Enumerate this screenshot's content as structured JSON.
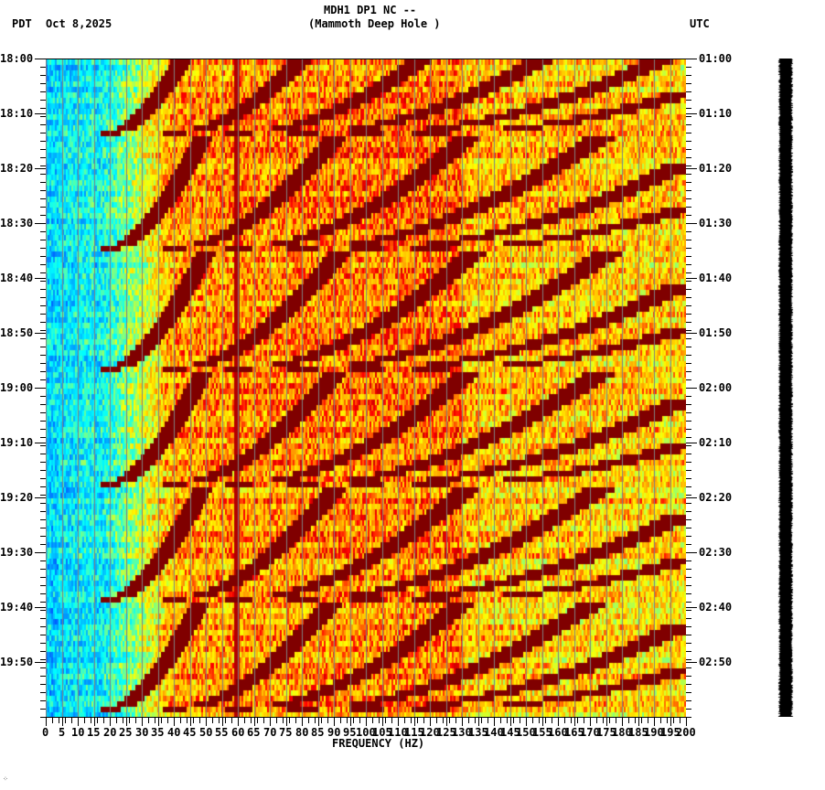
{
  "header": {
    "station_line": "MDH1 DP1 NC --",
    "location_line": "(Mammoth Deep Hole )",
    "left_timezone": "PDT",
    "date": "Oct 8,2025",
    "right_timezone": "UTC"
  },
  "footer": {
    "corner_mark": "⁘"
  },
  "colors": {
    "background": "#ffffff",
    "grid_line": "#808080",
    "colormap_low": "#0080ff",
    "colormap_mid_low": "#00ffff",
    "colormap_mid": "#ffff00",
    "colormap_mid_high": "#ff8000",
    "colormap_high": "#ff0000",
    "colormap_max": "#800000",
    "waveform": "#000000"
  },
  "chart_data": {
    "type": "heatmap",
    "title": "MDH1 DP1 NC -- (Mammoth Deep Hole )",
    "subtitle": "Oct 8,2025",
    "xlabel": "FREQUENCY (HZ)",
    "ylabel_left": "PDT",
    "ylabel_right": "UTC",
    "xlim": [
      0,
      200
    ],
    "x_ticks": [
      0,
      5,
      10,
      15,
      20,
      25,
      30,
      35,
      40,
      45,
      50,
      55,
      60,
      65,
      70,
      75,
      80,
      85,
      90,
      95,
      100,
      105,
      110,
      115,
      120,
      125,
      130,
      135,
      140,
      145,
      150,
      155,
      160,
      165,
      170,
      175,
      180,
      185,
      190,
      195,
      200
    ],
    "x_tick_labels": [
      "0",
      "5",
      "10",
      "15",
      "20",
      "25",
      "30",
      "35",
      "40",
      "45",
      "50",
      "55",
      "60",
      "65",
      "70",
      "75",
      "80",
      "85",
      "90",
      "95",
      "100",
      "105",
      "110",
      "115",
      "120",
      "125",
      "130",
      "135",
      "140",
      "145",
      "150",
      "155",
      "160",
      "165",
      "170",
      "175",
      "180",
      "185",
      "190",
      "195",
      "200"
    ],
    "y_ticks_left": [
      "18:00",
      "18:10",
      "18:20",
      "18:30",
      "18:40",
      "18:50",
      "19:00",
      "19:10",
      "19:20",
      "19:30",
      "19:40",
      "19:50"
    ],
    "y_ticks_right": [
      "01:00",
      "01:10",
      "01:20",
      "01:30",
      "01:40",
      "01:50",
      "02:00",
      "02:10",
      "02:20",
      "02:30",
      "02:40",
      "02:50"
    ],
    "time_span_minutes": 120,
    "grid": {
      "vertical_every_hz": 5,
      "color": "#808080"
    },
    "features": {
      "low_freq_band_hz": [
        0,
        20
      ],
      "low_freq_level": "low (blue/cyan)",
      "high_freq_level": "moderate-high (orange/yellow/red)",
      "persistent_line_hz": 60,
      "sweep_arcs": {
        "description": "repeating dark-red curved sweeps rising from ~20 Hz toward higher frequency",
        "cycle_onsets_pdt": [
          "18:13",
          "18:34",
          "18:56",
          "19:17",
          "19:38",
          "19:58"
        ],
        "harmonics_start_hz": [
          20,
          40,
          60,
          80,
          100,
          120
        ]
      }
    },
    "colorbar": "none",
    "side_panel": "amplitude waveform strip (black)"
  }
}
